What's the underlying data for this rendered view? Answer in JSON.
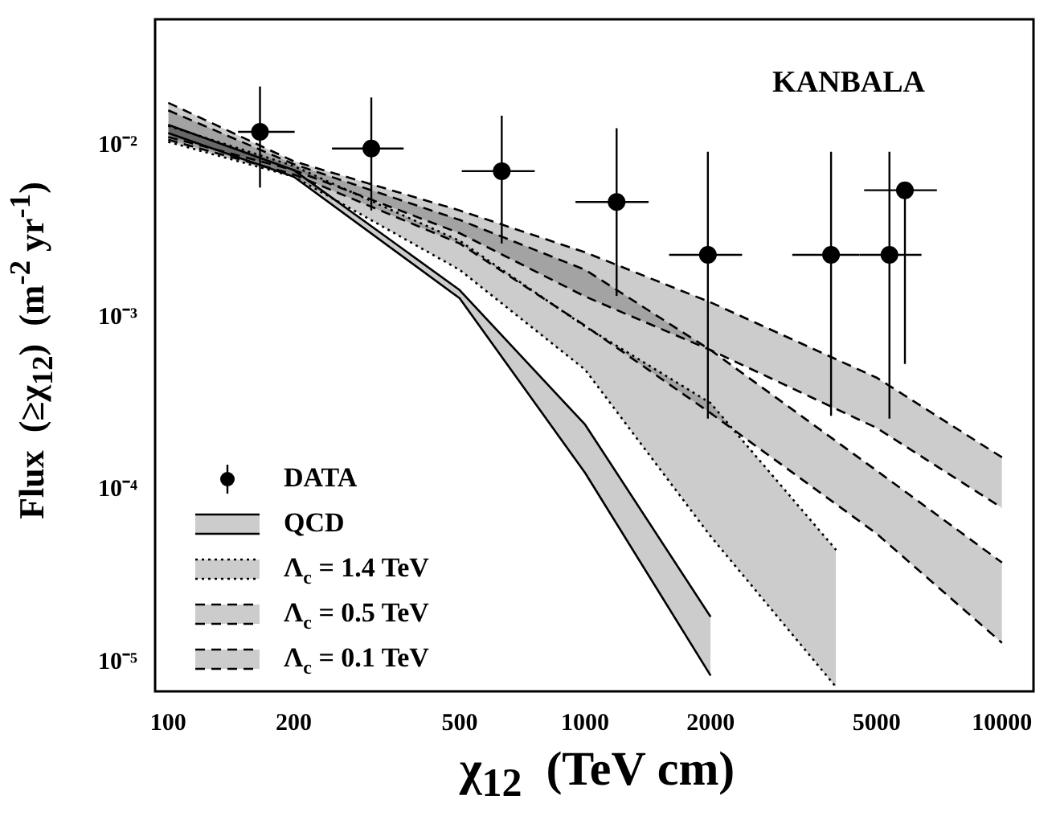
{
  "chart_data": {
    "type": "line",
    "xlabel": "χ$_{12}$  (TeV cm)",
    "ylabel": "Flux  (≥χ$_{12}$)  (m$^{-2}$ yr$^{-1}$)",
    "annotations": [
      "KANBALA"
    ],
    "log": "xy",
    "grid": false,
    "legend": "bottom left",
    "xlim": [
      93,
      11900
    ],
    "ylim": [
      6.8e-06,
      0.054
    ],
    "xticks": [
      100,
      200,
      500,
      1000,
      2000,
      5000,
      10000
    ],
    "yticks": [
      {
        "value": 1e-05,
        "label": "10⁻⁵"
      },
      {
        "value": 0.0001,
        "label": "10⁻⁴"
      },
      {
        "value": 0.001,
        "label": "10⁻³"
      },
      {
        "value": 0.01,
        "label": "10⁻²"
      }
    ],
    "series": [
      {
        "name": "DATA",
        "type": "scatter",
        "color": "#000000",
        "marker": "circle",
        "x": [
          166,
          307,
          631,
          1190,
          1970,
          3890,
          5370,
          5850
        ],
        "values": [
          0.012,
          0.0096,
          0.0071,
          0.0047,
          0.00232,
          0.00232,
          0.00232,
          0.0055
        ],
        "errors": [
          [
            0.0057,
            0.022
          ],
          [
            0.0042,
            0.019
          ],
          [
            0.0027,
            0.0149
          ],
          [
            0.00134,
            0.0126
          ],
          [
            0.00026,
            0.0092
          ],
          [
            0.00027,
            0.0092
          ],
          [
            0.00026,
            0.0092
          ],
          [
            0.00054,
            0.0055
          ]
        ],
        "xerrors": [
          [
            147,
            201
          ],
          [
            247,
            367
          ],
          [
            506,
            757
          ],
          [
            948,
            1420
          ],
          [
            1590,
            2380
          ],
          [
            3140,
            4550
          ],
          [
            4550,
            6410
          ],
          [
            4670,
            6980
          ]
        ]
      },
      {
        "name": "QCD",
        "type": "line",
        "color": "#000000",
        "line_style": "solid",
        "marker": "none",
        "x": [
          100,
          200,
          500,
          1000,
          2000
        ],
        "values": [
          0.0132,
          0.0072,
          0.00145,
          0.00024,
          1.84e-05
        ],
        "lower": [
          0.0118,
          0.0066,
          0.0013,
          0.000126,
          8.4e-06
        ],
        "upper": [
          0.0132,
          0.0072,
          0.00145,
          0.00024,
          1.84e-05
        ]
      },
      {
        "name": "Λ$_{c}$ = 1.4 TeV",
        "type": "line",
        "color": "#000000",
        "line_style": "dotted",
        "marker": "none",
        "x": [
          100,
          200,
          500,
          1000,
          2000,
          4000
        ],
        "values": [
          0.013,
          0.0076,
          0.0028,
          0.00089,
          0.00032,
          4.5e-05
        ],
        "lower": [
          0.0105,
          0.0066,
          0.0019,
          0.0005,
          5.4e-05,
          7.2e-06
        ],
        "upper": [
          0.013,
          0.0076,
          0.0028,
          0.00089,
          0.00032,
          4.5e-05
        ]
      },
      {
        "name": "Λ$_{c}$ = 0.5 TeV",
        "type": "line",
        "color": "#000000",
        "line_style": "dashed",
        "marker": "none",
        "x": [
          100,
          200,
          500,
          1000,
          2000,
          5000,
          10000
        ],
        "values": [
          0.016,
          0.0078,
          0.0037,
          0.0019,
          0.00065,
          0.00013,
          3.8e-05
        ],
        "lower": [
          0.0108,
          0.0068,
          0.0027,
          0.0009,
          0.00028,
          5.6e-05,
          1.3e-05
        ],
        "upper": [
          0.016,
          0.0078,
          0.0037,
          0.0019,
          0.00065,
          0.00013,
          3.8e-05
        ]
      },
      {
        "name": "Λ$_{c}$ = 0.1 TeV",
        "type": "line",
        "color": "#000000",
        "line_style": "dashed",
        "marker": "none",
        "x": [
          100,
          200,
          500,
          1000,
          2000,
          5000,
          10000
        ],
        "values": [
          0.0177,
          0.0081,
          0.0042,
          0.0024,
          0.00123,
          0.00045,
          0.000155
        ],
        "lower": [
          0.0112,
          0.0072,
          0.0031,
          0.00133,
          0.00065,
          0.00023,
          7.9e-05
        ],
        "upper": [
          0.0177,
          0.0081,
          0.0042,
          0.0024,
          0.00123,
          0.00045,
          0.000155
        ]
      },
      {
        "color": "#000000",
        "line_style": "solid",
        "marker": "none",
        "x": [
          100,
          200,
          500,
          1000,
          2000
        ],
        "values": [
          0.0118,
          0.0066,
          0.0013,
          0.000126,
          8.4e-06
        ]
      },
      {
        "color": "#000000",
        "line_style": "dotted",
        "marker": "none",
        "x": [
          100,
          200,
          500,
          1000,
          2000,
          4000
        ],
        "values": [
          0.0105,
          0.0066,
          0.0019,
          0.0005,
          5.4e-05,
          7.2e-06
        ]
      },
      {
        "color": "#000000",
        "line_style": "dashed",
        "marker": "none",
        "x": [
          100,
          200,
          500,
          1000,
          2000,
          5000,
          10000
        ],
        "values": [
          0.0108,
          0.0068,
          0.0027,
          0.0009,
          0.00028,
          5.6e-05,
          1.3e-05
        ]
      },
      {
        "color": "#000000",
        "line_style": "dashed",
        "marker": "none",
        "x": [
          100,
          200,
          500,
          1000,
          2000,
          5000,
          10000
        ],
        "values": [
          0.0112,
          0.0072,
          0.0031,
          0.00133,
          0.00065,
          0.00023,
          7.9e-05
        ]
      }
    ]
  }
}
